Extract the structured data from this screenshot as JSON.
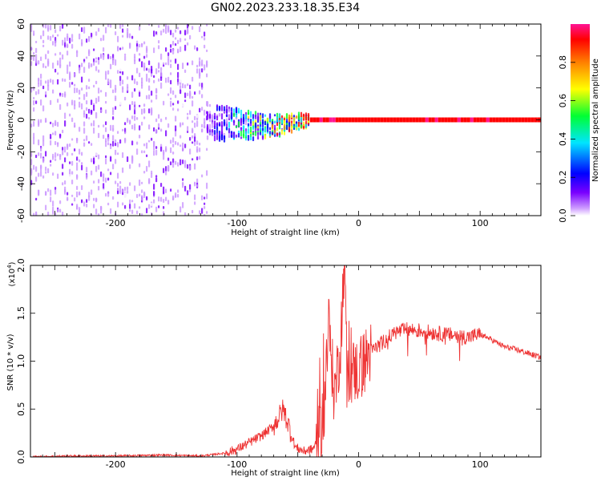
{
  "title": "GN02.2023.233.18.35.E34",
  "chart_data": [
    {
      "type": "heatmap",
      "xlabel": "Height of straight line (km)",
      "ylabel": "Frequency (Hz)",
      "xlim": [
        -270,
        150
      ],
      "ylim": [
        -60,
        60
      ],
      "xticks": [
        "-200",
        "-100",
        "0",
        "100"
      ],
      "yticks": [
        "-60",
        "-40",
        "-20",
        "0",
        "20",
        "40",
        "60"
      ],
      "colorbar": {
        "label": "Normalized spectral amplitude",
        "range": [
          0,
          1
        ],
        "ticks": [
          "0.0",
          "0.2",
          "0.4",
          "0.6",
          "0.8"
        ],
        "colors": [
          "#ffffff",
          "#cc99ff",
          "#7a00ff",
          "#0000ff",
          "#00e5ff",
          "#00ff33",
          "#ffff00",
          "#ff8000",
          "#ff0000",
          "#ff1493"
        ]
      },
      "regions": [
        {
          "x": [
            -270,
            -125
          ],
          "freq_range": [
            -60,
            60
          ],
          "amplitude": 0.12,
          "desc": "broadband noise"
        },
        {
          "x": [
            -125,
            -40
          ],
          "freq_range": [
            -12,
            12
          ],
          "amplitude": 0.35,
          "desc": "narrowing band"
        },
        {
          "x": [
            -40,
            150
          ],
          "freq_range": [
            -2,
            2
          ],
          "amplitude": 0.95,
          "desc": "strong tone near 0 Hz"
        }
      ]
    },
    {
      "type": "line",
      "xlabel": "Height of straight line (km)",
      "ylabel": "SNR (10 * v/v)",
      "scale_label": "(x10",
      "scale_exp": "4",
      "scale_close": ")",
      "xlim": [
        -270,
        150
      ],
      "ylim": [
        0,
        2.0
      ],
      "xticks": [
        "-200",
        "-100",
        "0",
        "100"
      ],
      "yticks": [
        "0.0",
        "0.5",
        "1.0",
        "1.5",
        "2.0"
      ],
      "color": "#ee3333",
      "series": [
        {
          "x": [
            -270,
            -240,
            -200,
            -160,
            -130,
            -110,
            -100,
            -90,
            -80,
            -70,
            -62,
            -58,
            -52,
            -45,
            -38,
            -32,
            -28,
            -25,
            -20,
            -15,
            -12,
            -8,
            -4,
            0,
            5,
            10,
            20,
            30,
            40,
            50,
            60,
            70,
            80,
            90,
            100,
            110,
            120,
            130,
            140,
            150
          ],
          "values": [
            0.0,
            0.01,
            0.01,
            0.02,
            0.01,
            0.04,
            0.08,
            0.15,
            0.22,
            0.32,
            0.5,
            0.35,
            0.1,
            0.06,
            0.08,
            0.2,
            0.55,
            1.45,
            0.65,
            1.15,
            2.0,
            0.85,
            0.9,
            0.9,
            1.0,
            1.1,
            1.2,
            1.3,
            1.33,
            1.32,
            1.3,
            1.28,
            1.27,
            1.25,
            1.28,
            1.22,
            1.15,
            1.12,
            1.08,
            1.04
          ]
        }
      ]
    }
  ]
}
